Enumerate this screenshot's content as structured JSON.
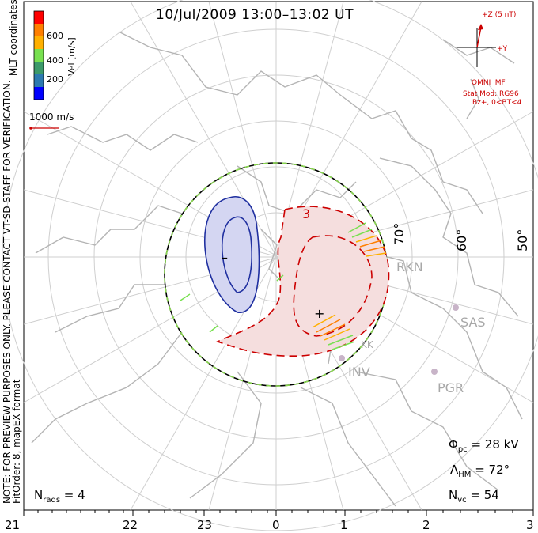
{
  "title": "10/Jul/2009 13:00–13:02 UT",
  "side_note": "NOTE: FOR PREVIEW PURPOSES ONLY. PLEASE CONTACT VT-SD STAFF FOR VERIFICATION.",
  "fit_info": "FitOrder: 8,  mapEX format",
  "coordinates_label": "MLT coordinates",
  "color_scale": {
    "label": "Vel [m/s]",
    "ticks": [
      "600",
      "400",
      "200"
    ],
    "colors": [
      "#ff0000",
      "#ff7f00",
      "#ffb000",
      "#78e050",
      "#3c9a6a",
      "#2c7ab0",
      "#0000ff"
    ]
  },
  "vector_scale": {
    "label": "1000 m/s"
  },
  "imf": {
    "z_label": "+Z (5 nT)",
    "y_label": "+Y",
    "source": "OMNI IMF",
    "model": "Stat Mod: RG96",
    "condition": "Bz+, 0<BT<4"
  },
  "latitude_labels": [
    "70°",
    "60°",
    "50°"
  ],
  "mlt_labels": [
    "21",
    "22",
    "23",
    "0",
    "1",
    "2",
    "3"
  ],
  "radars": [
    "RKN",
    "SAS",
    "INV",
    "PGR",
    "KK"
  ],
  "contours": {
    "negative_label": "3",
    "min_symbol": "–",
    "max_symbol": "+"
  },
  "stats": {
    "phi_pc": {
      "symbol": "Φ",
      "sub": "pc",
      "value": " = 28 kV"
    },
    "lambda_hm": {
      "symbol": "Λ",
      "sub": "HM",
      "value": " = 72°"
    },
    "n_vc": {
      "symbol": "N",
      "sub": "vc",
      "value": " = 54"
    },
    "n_rads": {
      "symbol": "N",
      "sub": "rads",
      "value": " = 4"
    }
  }
}
